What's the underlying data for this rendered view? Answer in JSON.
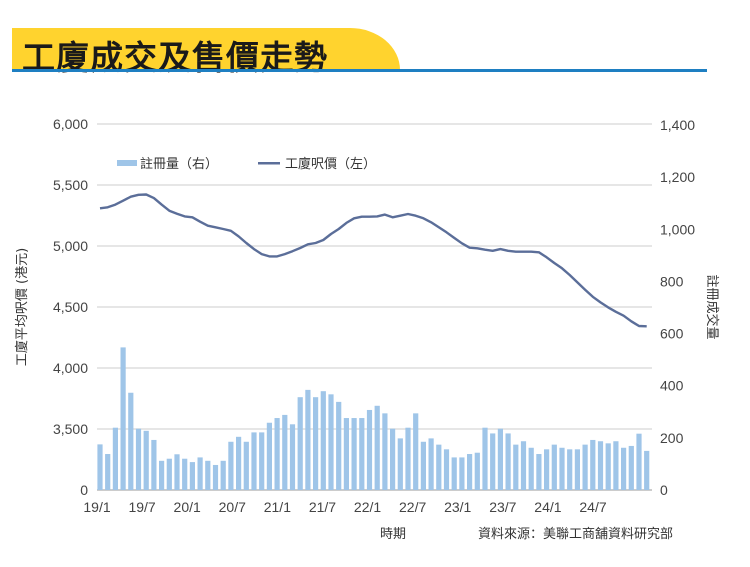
{
  "title": "工廈成交及售價走勢",
  "source": "資料來源：美聯工商舖資料研究部",
  "colors": {
    "banner": "#FFD32E",
    "rule": "#1E7FC2",
    "bar": "#9FC5E8",
    "line": "#5B6E99",
    "grid": "#DDDDDD"
  },
  "chart_data": {
    "type": "bar+line",
    "xlabel": "時期",
    "ylabel_left": "工廈平均呎價 (港元)",
    "ylabel_right": "註冊成交量",
    "x_tick_labels": [
      "19/1",
      "19/7",
      "20/1",
      "20/7",
      "21/1",
      "21/7",
      "22/1",
      "22/7",
      "23/1",
      "23/7",
      "24/1",
      "24/7"
    ],
    "left_ticks": [
      "6,000",
      "5,500",
      "5,000",
      "4,500",
      "4,000",
      "3,500",
      "0"
    ],
    "left_tick_values": [
      6000,
      5500,
      5000,
      4500,
      4000,
      3500,
      0
    ],
    "right_ticks": [
      "1,400",
      "1,200",
      "1,000",
      "800",
      "600",
      "400",
      "200",
      "0"
    ],
    "right_tick_values": [
      1400,
      1200,
      1000,
      800,
      600,
      400,
      200,
      0
    ],
    "ylim_left": [
      0,
      6000
    ],
    "ylim_right": [
      0,
      1400
    ],
    "legend": {
      "position": "top-left",
      "bar_label": "註冊量（右）",
      "line_label": "工廈呎價（左）"
    },
    "period": "2019/1 – 2024/12 (monthly)",
    "series": [
      {
        "name": "註冊量（右）",
        "type": "bar",
        "axis": "right",
        "values": [
          175,
          138,
          239,
          547,
          373,
          235,
          227,
          192,
          112,
          120,
          137,
          120,
          107,
          125,
          112,
          96,
          112,
          185,
          204,
          185,
          221,
          221,
          258,
          276,
          288,
          252,
          356,
          384,
          356,
          379,
          367,
          338,
          276,
          276,
          276,
          307,
          323,
          294,
          235,
          198,
          239,
          294,
          185,
          198,
          174,
          156,
          125,
          125,
          138,
          143,
          239,
          217,
          235,
          217,
          174,
          187,
          162,
          138,
          156,
          174,
          162,
          156,
          156,
          174,
          192,
          187,
          179,
          187,
          162,
          169,
          216,
          150
        ]
      },
      {
        "name": "工廈呎價（左）",
        "type": "line",
        "axis": "left",
        "values": [
          5309,
          5317,
          5339,
          5371,
          5404,
          5420,
          5422,
          5393,
          5339,
          5289,
          5265,
          5243,
          5235,
          5199,
          5166,
          5153,
          5139,
          5125,
          5079,
          5025,
          4975,
          4934,
          4915,
          4915,
          4934,
          4957,
          4984,
          5014,
          5025,
          5049,
          5098,
          5139,
          5189,
          5227,
          5240,
          5240,
          5243,
          5257,
          5235,
          5248,
          5262,
          5248,
          5227,
          5194,
          5153,
          5112,
          5066,
          5022,
          4986,
          4981,
          4970,
          4961,
          4975,
          4961,
          4953,
          4953,
          4953,
          4948,
          4907,
          4861,
          4817,
          4762,
          4702,
          4642,
          4584,
          4538,
          4497,
          4461,
          4429,
          4383,
          4344,
          4342
        ]
      }
    ]
  }
}
